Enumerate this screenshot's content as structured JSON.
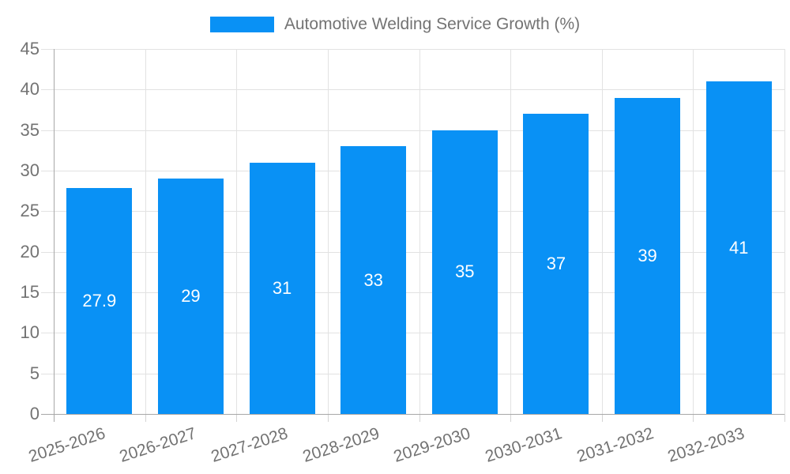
{
  "legend": {
    "label": "Automotive Welding Service Growth (%)"
  },
  "chart_data": {
    "type": "bar",
    "title": "Automotive Welding Service Growth (%)",
    "categories": [
      "2025-2026",
      "2026-2027",
      "2027-2028",
      "2028-2029",
      "2029-2030",
      "2030-2031",
      "2031-2032",
      "2032-2033"
    ],
    "values": [
      27.9,
      29,
      31,
      33,
      35,
      37,
      39,
      41
    ],
    "xlabel": "",
    "ylabel": "",
    "ylim": [
      0,
      45
    ],
    "ytick_step": 5,
    "ytick_labels": [
      "0",
      "5",
      "10",
      "15",
      "20",
      "25",
      "30",
      "35",
      "40",
      "45"
    ],
    "grid": true,
    "legend_position": "top",
    "value_labels": "inside-center",
    "colors": {
      "bar": "#0991f5",
      "value_label": "#ffffff",
      "axis_text": "#737373",
      "grid_line": "#e2e2e2",
      "axis_line": "#a8a8a8",
      "background": "#ffffff"
    }
  }
}
